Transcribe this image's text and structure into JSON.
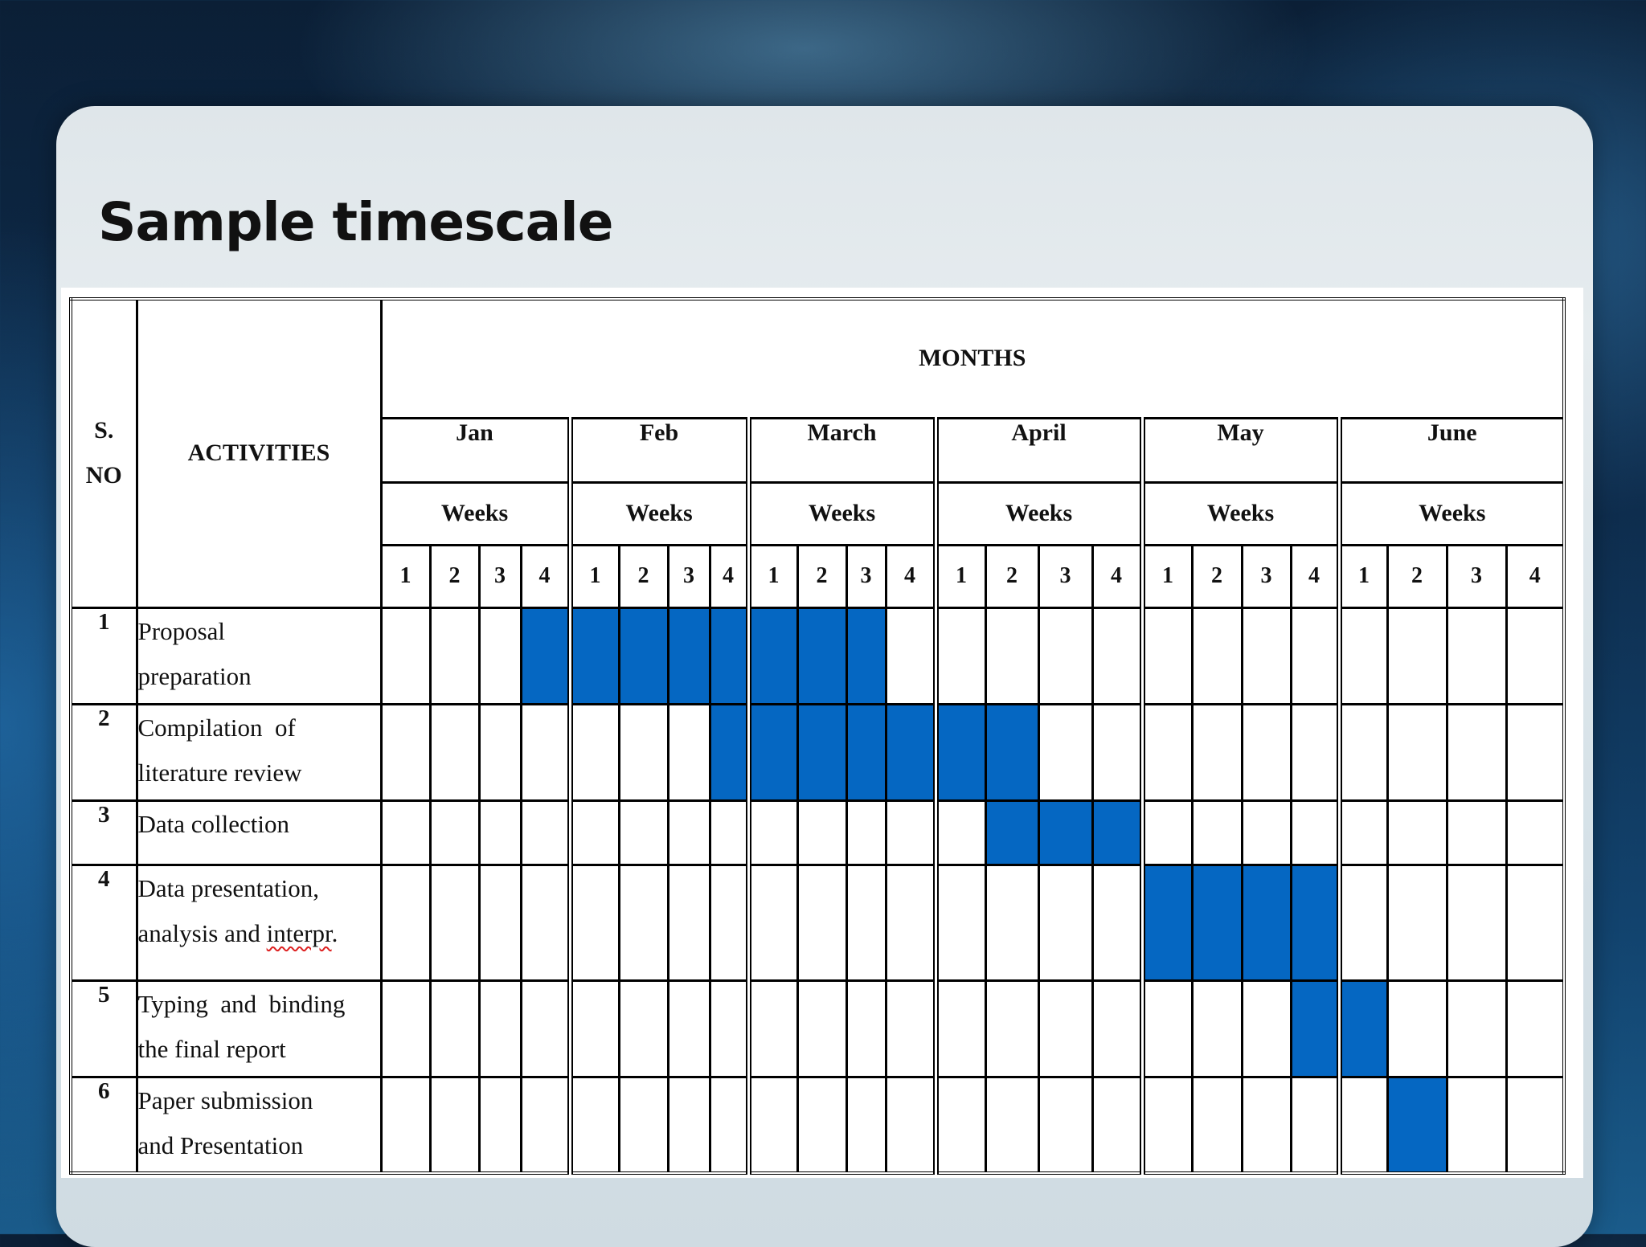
{
  "slide": {
    "title": "Sample timescale"
  },
  "table": {
    "header": {
      "sno_line1": "S.",
      "sno_line2": "NO",
      "activities": "ACTIVITIES",
      "months_label": "MONTHS",
      "weeks_label": "Weeks",
      "months": [
        "Jan",
        "Feb",
        "March",
        "April",
        "May",
        "June"
      ],
      "week_numbers": [
        "1",
        "2",
        "3",
        "4"
      ]
    },
    "rows": [
      {
        "sno": "1",
        "line1": "Proposal",
        "line2": "preparation",
        "filled_weeks": [
          4,
          5,
          6,
          7,
          8,
          9,
          10,
          11
        ]
      },
      {
        "sno": "2",
        "line1": "Compilation  of",
        "line2": "literature review",
        "filled_weeks": [
          8,
          9,
          10,
          11,
          12,
          13,
          14
        ]
      },
      {
        "sno": "3",
        "line1": "Data collection",
        "line2": "",
        "filled_weeks": [
          14,
          15,
          16
        ]
      },
      {
        "sno": "4",
        "line1": "Data presentation,",
        "line2": "analysis and interpr.",
        "filled_weeks": [
          17,
          18,
          19,
          20
        ]
      },
      {
        "sno": "5",
        "line1": "Typing  and  binding",
        "line2": "the final report",
        "filled_weeks": [
          20,
          21
        ]
      },
      {
        "sno": "6",
        "line1": "Paper submission",
        "line2": "and Presentation",
        "filled_weeks": [
          22
        ]
      }
    ],
    "fill_color": "#0567c2"
  }
}
